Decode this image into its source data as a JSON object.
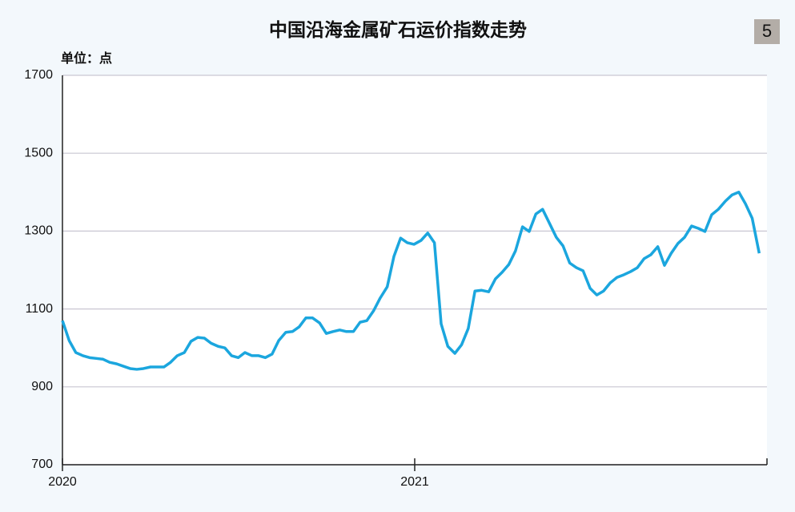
{
  "chart_data": {
    "type": "line",
    "title": "中国沿海金属矿石运价指数走势",
    "badge": "5",
    "y_unit_label": "单位：点",
    "x": [
      2020,
      2020.019,
      2020.038,
      2020.058,
      2020.077,
      2020.096,
      2020.115,
      2020.134,
      2020.154,
      2020.173,
      2020.192,
      2020.211,
      2020.23,
      2020.25,
      2020.269,
      2020.288,
      2020.307,
      2020.326,
      2020.346,
      2020.365,
      2020.384,
      2020.403,
      2020.422,
      2020.442,
      2020.461,
      2020.48,
      2020.499,
      2020.518,
      2020.538,
      2020.557,
      2020.576,
      2020.595,
      2020.614,
      2020.634,
      2020.653,
      2020.672,
      2020.691,
      2020.71,
      2020.73,
      2020.749,
      2020.768,
      2020.787,
      2020.806,
      2020.826,
      2020.845,
      2020.864,
      2020.883,
      2020.902,
      2020.922,
      2020.941,
      2020.96,
      2020.979,
      2020.998,
      2021.018,
      2021.037,
      2021.056,
      2021.075,
      2021.094,
      2021.114,
      2021.133,
      2021.152,
      2021.171,
      2021.19,
      2021.21,
      2021.229,
      2021.248,
      2021.267,
      2021.286,
      2021.306,
      2021.325,
      2021.344,
      2021.363,
      2021.382,
      2021.402,
      2021.421,
      2021.44,
      2021.459,
      2021.478,
      2021.498,
      2021.517,
      2021.536,
      2021.555,
      2021.574,
      2021.594,
      2021.613,
      2021.632,
      2021.651,
      2021.67,
      2021.69,
      2021.709,
      2021.728,
      2021.747,
      2021.766,
      2021.786,
      2021.805,
      2021.824,
      2021.843,
      2021.862,
      2021.882,
      2021.901,
      2021.92,
      2021.939,
      2021.958,
      2021.978
    ],
    "series": [
      {
        "color": "#1ba6de",
        "values": [
          1070,
          1019,
          988,
          980,
          975,
          973,
          971,
          963,
          959,
          953,
          947,
          945,
          947,
          951,
          951,
          951,
          963,
          980,
          988,
          1017,
          1027,
          1025,
          1012,
          1004,
          1000,
          980,
          975,
          988,
          980,
          980,
          975,
          984,
          1019,
          1040,
          1042,
          1054,
          1077,
          1077,
          1064,
          1037,
          1042,
          1046,
          1042,
          1042,
          1066,
          1070,
          1095,
          1128,
          1157,
          1235,
          1282,
          1270,
          1266,
          1276,
          1295,
          1270,
          1062,
          1004,
          986,
          1008,
          1050,
          1146,
          1148,
          1144,
          1177,
          1194,
          1214,
          1249,
          1311,
          1299,
          1344,
          1356,
          1321,
          1284,
          1262,
          1218,
          1206,
          1198,
          1153,
          1136,
          1146,
          1167,
          1181,
          1188,
          1196,
          1206,
          1229,
          1239,
          1260,
          1212,
          1243,
          1268,
          1284,
          1313,
          1307,
          1299,
          1342,
          1356,
          1377,
          1393,
          1400,
          1370,
          1333,
          1243
        ]
      }
    ],
    "xlim": [
      2020,
      2022
    ],
    "xticks": [
      2020,
      2021
    ],
    "ylim": [
      700,
      1700
    ],
    "yticks": [
      700,
      900,
      1100,
      1300,
      1500,
      1700
    ],
    "grid": true
  }
}
